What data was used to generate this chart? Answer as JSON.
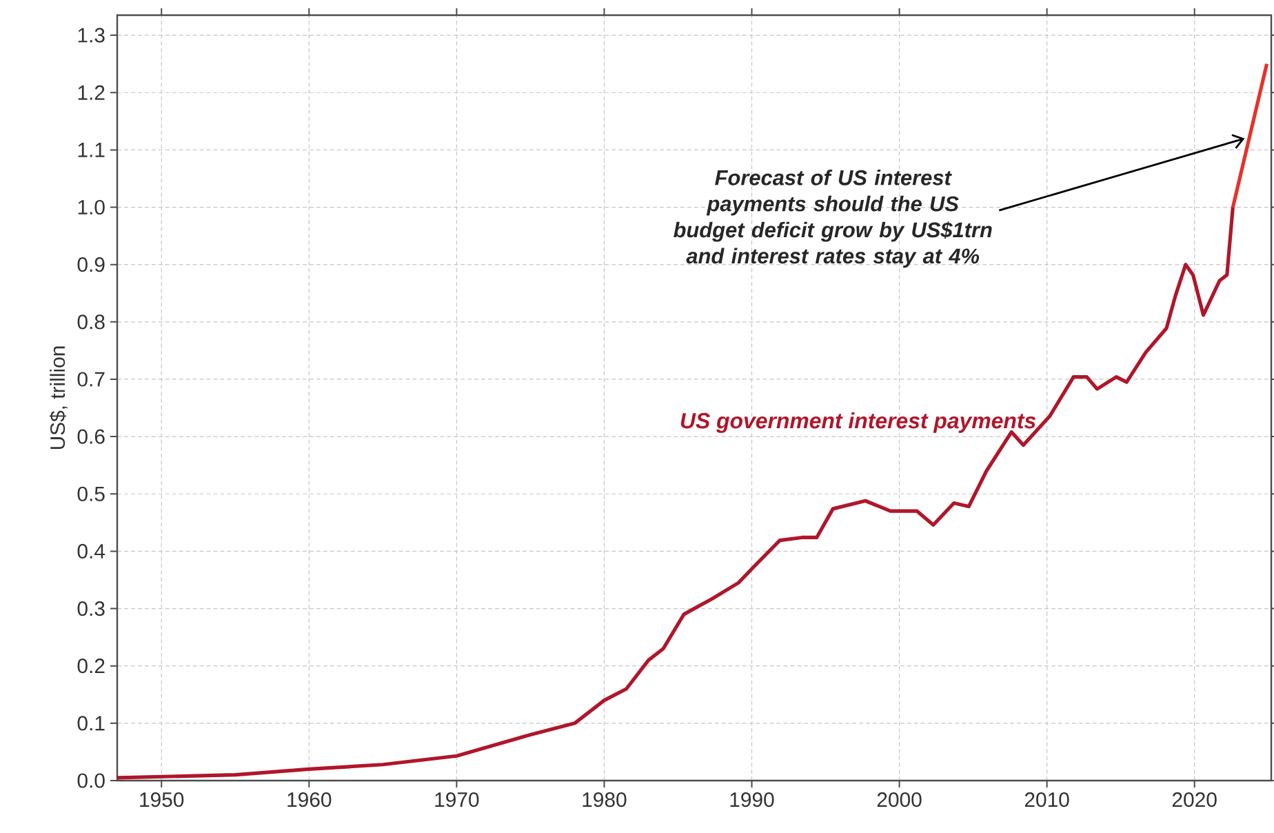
{
  "chart_data": {
    "type": "line",
    "ylabel": "US$, trillion",
    "xlim": [
      1947,
      2025.2
    ],
    "ylim": [
      0,
      1.335
    ],
    "xticks": [
      1950,
      1960,
      1970,
      1980,
      1990,
      2000,
      2010,
      2020
    ],
    "yticks": [
      {
        "value": 0,
        "label": "0.0"
      },
      0.1,
      0.2,
      0.3,
      0.4,
      0.5,
      0.6,
      0.7,
      0.8,
      0.9,
      {
        "value": 1,
        "label": "1.0"
      },
      1.1,
      1.2,
      1.3
    ],
    "grid": true,
    "legend": false,
    "line_style": "solid",
    "marker": "none",
    "series": [
      {
        "name": "US government interest payments",
        "color": "#b0162a",
        "x": [
          1947,
          1955,
          1960,
          1965,
          1970,
          1975,
          1978,
          1980,
          1981.5,
          1983,
          1984,
          1985.4,
          1987.3,
          1989.1,
          1990.1,
          1991.9,
          1993.4,
          1994.4,
          1995.5,
          1997.7,
          1999.4,
          2001.2,
          2002.3,
          2003.7,
          2004.7,
          2005.9,
          2007.6,
          2008.4,
          2010.2,
          2011.8,
          2012.7,
          2013.4,
          2014.7,
          2015.4,
          2016.7,
          2018.1,
          2018.7,
          2019.4,
          2019.9,
          2020.6,
          2021.7,
          2022.2,
          2022.6
        ],
        "values": [
          0.005,
          0.01,
          0.02,
          0.028,
          0.043,
          0.08,
          0.1,
          0.14,
          0.16,
          0.21,
          0.23,
          0.29,
          0.317,
          0.345,
          0.372,
          0.419,
          0.424,
          0.424,
          0.474,
          0.488,
          0.47,
          0.47,
          0.446,
          0.484,
          0.478,
          0.54,
          0.608,
          0.585,
          0.636,
          0.704,
          0.704,
          0.683,
          0.704,
          0.695,
          0.747,
          0.789,
          0.845,
          0.9,
          0.882,
          0.812,
          0.872,
          0.882,
          1.0
        ]
      },
      {
        "color": "#e8312a",
        "x": [
          2022.6,
          2024.9
        ],
        "values": [
          1.0,
          1.25
        ]
      }
    ],
    "annotations": [
      {
        "text": "Forecast of US interest payments should the US budget deficit grow by US$1trn and interest rates stay at 4%",
        "x": 2023.7,
        "y": 1.12
      }
    ]
  }
}
